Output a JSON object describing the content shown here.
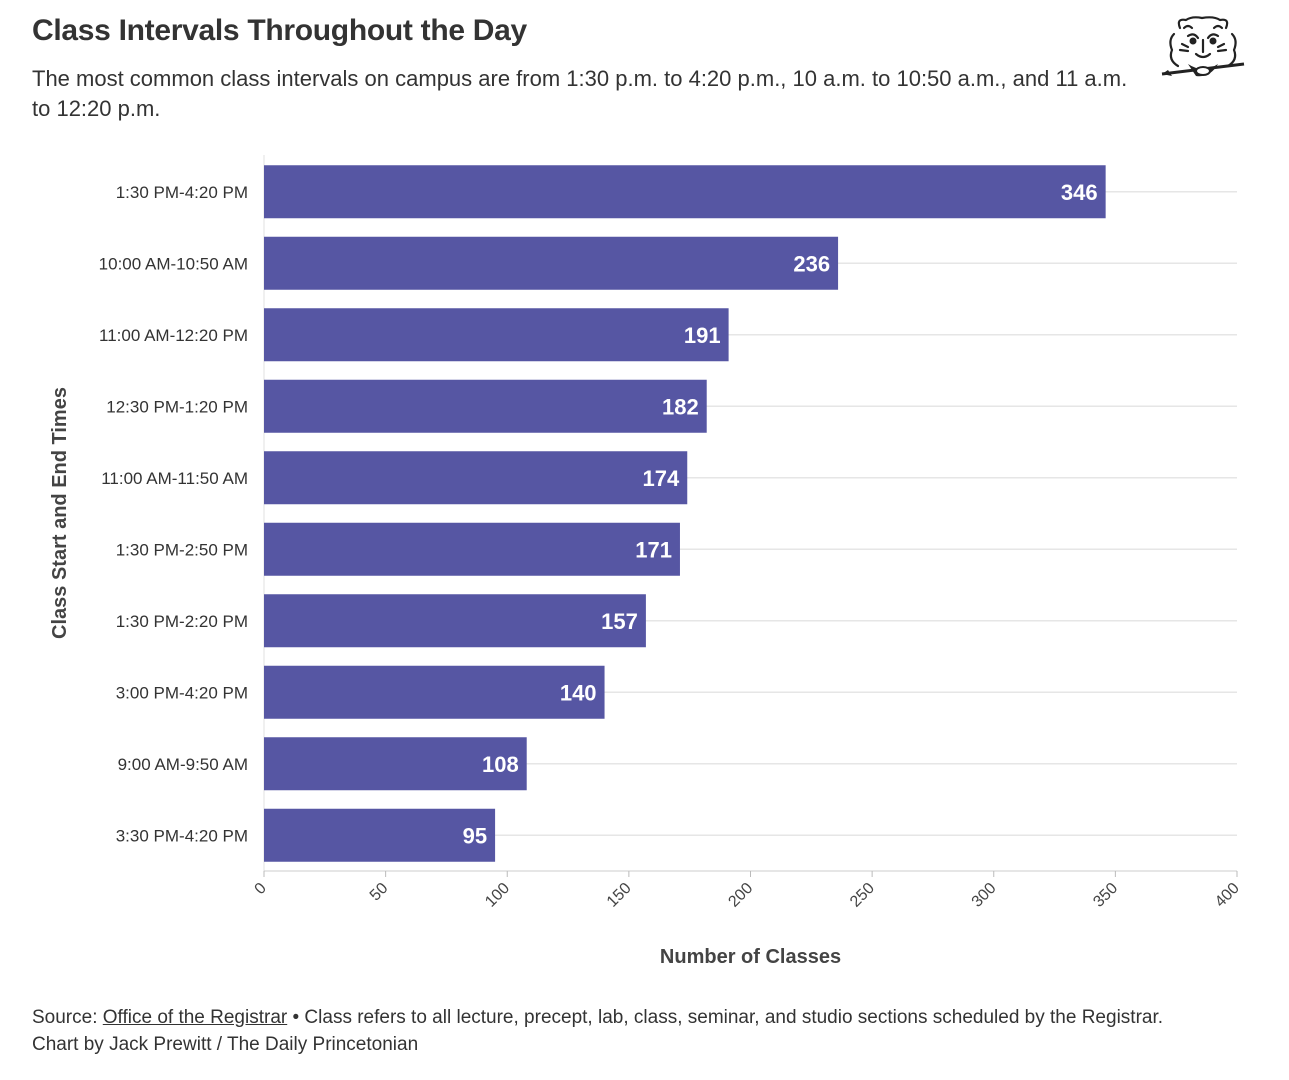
{
  "header": {
    "title": "Class Intervals Throughout the Day",
    "subtitle": "The most common class intervals on campus are from 1:30 p.m. to 4:20 p.m., 10 a.m. to 10:50 a.m., and 11 a.m. to 12:20 p.m."
  },
  "logo": {
    "icon": "tiger-head-logo"
  },
  "colors": {
    "bar": "#5656a3",
    "grid": "#e6e6e6",
    "text": "#333333",
    "label": "#ffffff"
  },
  "chart_data": {
    "type": "bar",
    "orientation": "horizontal",
    "categories": [
      "1:30 PM-4:20 PM",
      "10:00 AM-10:50 AM",
      "11:00 AM-12:20 PM",
      "12:30 PM-1:20 PM",
      "11:00 AM-11:50 AM",
      "1:30 PM-2:50 PM",
      "1:30 PM-2:20 PM",
      "3:00 PM-4:20 PM",
      "9:00 AM-9:50 AM",
      "3:30 PM-4:20 PM"
    ],
    "values": [
      346,
      236,
      191,
      182,
      174,
      171,
      157,
      140,
      108,
      95
    ],
    "xlabel": "Number of Classes",
    "ylabel": "Class Start and End Times",
    "xlim": [
      0,
      400
    ],
    "xticks": [
      "0",
      "50",
      "100",
      "150",
      "200",
      "250",
      "300",
      "350",
      "400"
    ],
    "grid": true
  },
  "footer": {
    "source_prefix": "Source: ",
    "source_link": "Office of the Registrar",
    "source_note": " • Class refers to all lecture, precept, lab, class, seminar, and studio sections scheduled by the Registrar.",
    "credit": "Chart by Jack Prewitt / The Daily Princetonian"
  }
}
